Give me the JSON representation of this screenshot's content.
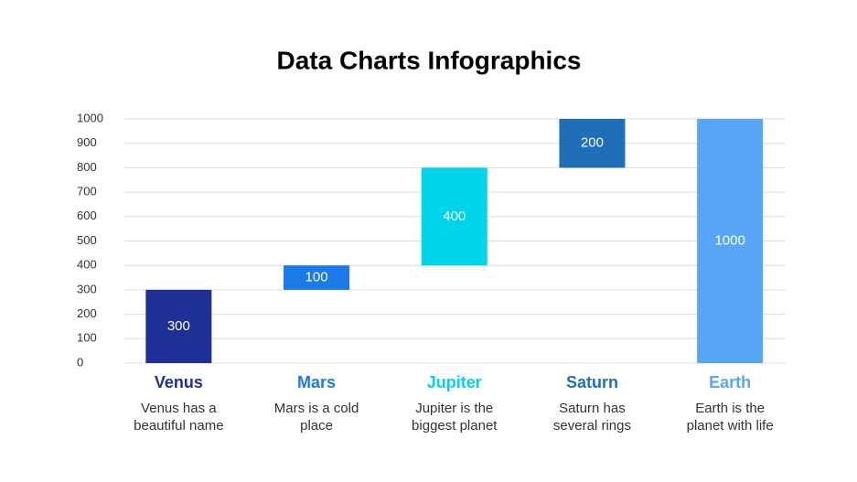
{
  "chart_data": {
    "type": "waterfall",
    "title": "Data Charts Infographics",
    "categories": [
      "Venus",
      "Mars",
      "Jupiter",
      "Saturn",
      "Earth"
    ],
    "descriptions": [
      [
        "Venus has a",
        "beautiful name"
      ],
      [
        "Mars is a cold",
        "place"
      ],
      [
        "Jupiter is the",
        "biggest planet"
      ],
      [
        "Saturn has",
        "several rings"
      ],
      [
        "Earth is the",
        "planet with life"
      ]
    ],
    "values": [
      300,
      100,
      400,
      200,
      1000
    ],
    "measures": [
      "relative",
      "relative",
      "relative",
      "relative",
      "total"
    ],
    "colors": [
      "#1e2f97",
      "#1a7ae8",
      "#00d4ec",
      "#1f6fb8",
      "#58a6f6"
    ],
    "ylim": [
      0,
      1000
    ],
    "yticks": [
      0,
      100,
      200,
      300,
      400,
      500,
      600,
      700,
      800,
      900,
      1000
    ],
    "grid": true
  }
}
